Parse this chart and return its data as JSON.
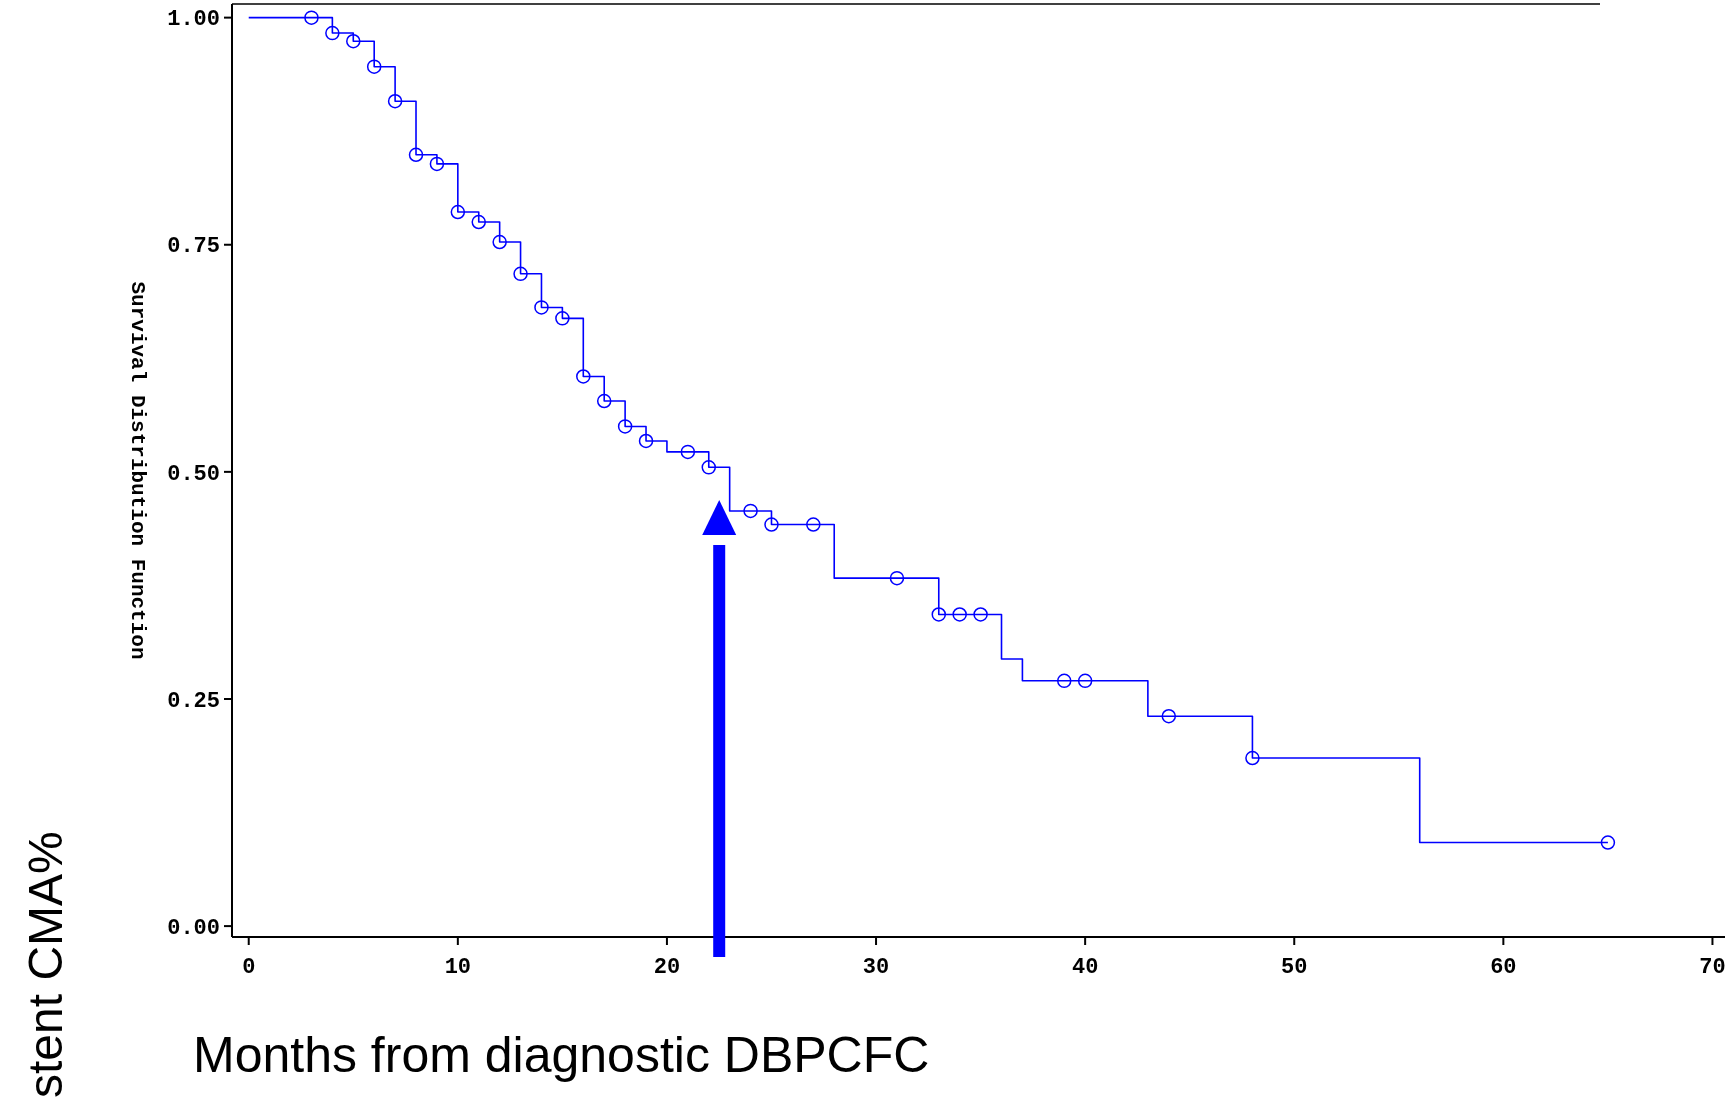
{
  "chart_data": {
    "type": "step",
    "xlabel": "Months from diagnostic DBPCFC",
    "ylabel": "Survival Distribution Function",
    "annotations": [
      "stent CMA%"
    ],
    "xlim": [
      -0.8,
      70.6
    ],
    "ylim": [
      -0.012,
      1.015
    ],
    "xticks": [
      0,
      10,
      20,
      30,
      40,
      50,
      60,
      70
    ],
    "yticks": [
      {
        "value": 0,
        "label": "0.00"
      },
      {
        "value": 0.25,
        "label": "0.25"
      },
      {
        "value": 0.5,
        "label": "0.50"
      },
      {
        "value": 0.75,
        "label": "0.75"
      },
      {
        "value": 1,
        "label": "1.00"
      }
    ],
    "grid": false,
    "series": [
      {
        "color": "#0000ff",
        "line_style": "solid",
        "x": [
          0,
          4,
          5,
          6,
          7,
          8,
          9,
          10,
          11,
          12,
          13,
          14,
          15,
          16,
          17,
          18,
          19,
          20,
          22,
          23,
          25,
          28,
          33,
          36,
          37,
          43,
          48,
          56,
          65
        ],
        "values": [
          1,
          0.983,
          0.974,
          0.946,
          0.908,
          0.849,
          0.839,
          0.786,
          0.775,
          0.753,
          0.718,
          0.681,
          0.669,
          0.605,
          0.578,
          0.55,
          0.534,
          0.522,
          0.505,
          0.457,
          0.442,
          0.383,
          0.343,
          0.294,
          0.27,
          0.231,
          0.185,
          0.092,
          0.092
        ]
      },
      {
        "type": "scatter",
        "color": "#0000ff",
        "marker": "circle",
        "x": [
          3,
          4,
          5,
          6,
          7,
          8,
          9,
          10,
          11,
          12,
          13,
          14,
          15,
          16,
          17,
          18,
          19,
          21,
          22,
          24,
          25,
          27,
          31,
          33,
          34,
          35,
          39,
          40,
          44,
          48,
          65
        ],
        "values": [
          1,
          0.983,
          0.974,
          0.946,
          0.908,
          0.849,
          0.839,
          0.786,
          0.775,
          0.753,
          0.718,
          0.681,
          0.669,
          0.605,
          0.578,
          0.55,
          0.534,
          0.522,
          0.505,
          0.457,
          0.442,
          0.442,
          0.383,
          0.343,
          0.343,
          0.343,
          0.27,
          0.27,
          0.231,
          0.185,
          0.092
        ]
      }
    ]
  }
}
